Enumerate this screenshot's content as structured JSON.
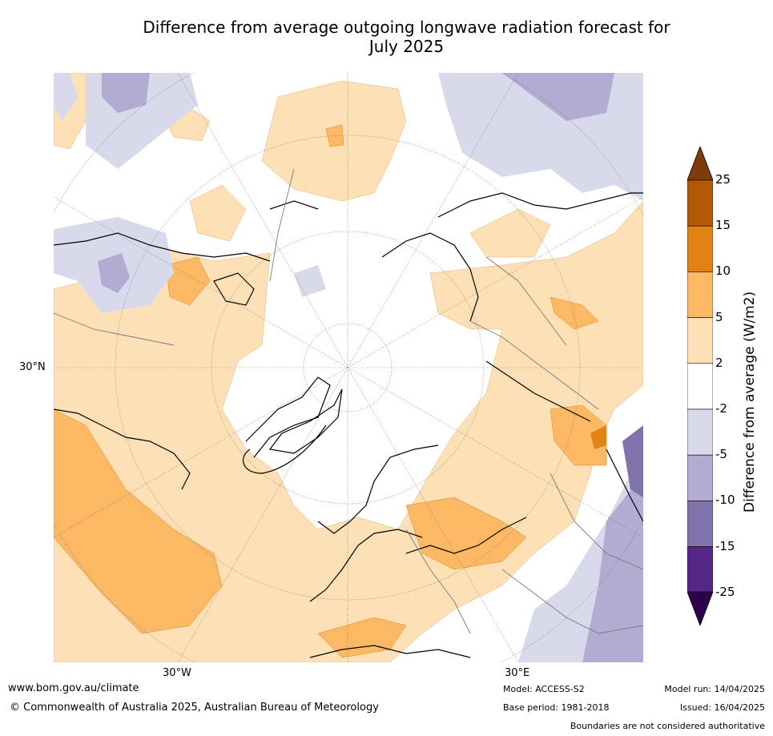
{
  "title_line1": "Difference from average outgoing longwave radiation forecast for",
  "title_line2": "July 2025",
  "map": {
    "projection": "north-polar-stereographic",
    "graticule": "dotted",
    "labels": {
      "lat_30n": "30°N",
      "lon_30w": "30°W",
      "lon_30e": "30°E"
    }
  },
  "colorbar": {
    "label": "Difference from average (W/m2)",
    "ticks": [
      "25",
      "15",
      "10",
      "5",
      "2",
      "-2",
      "-5",
      "-10",
      "-15",
      "-25"
    ],
    "bins": [
      {
        "range": ">25",
        "color": "#7f3b08"
      },
      {
        "range": "15 to 25",
        "color": "#b35806"
      },
      {
        "range": "10 to 15",
        "color": "#e08214"
      },
      {
        "range": "5 to 10",
        "color": "#fdb863"
      },
      {
        "range": "2 to 5",
        "color": "#fee0b6"
      },
      {
        "range": "-2 to 2",
        "color": "#ffffff"
      },
      {
        "range": "-5 to -2",
        "color": "#d8daeb"
      },
      {
        "range": "-10 to -5",
        "color": "#b2abd2"
      },
      {
        "range": "-15 to -10",
        "color": "#8073ac"
      },
      {
        "range": "-25 to -15",
        "color": "#542788"
      },
      {
        "range": "<-25",
        "color": "#2d004b"
      }
    ]
  },
  "footer": {
    "website": "www.bom.gov.au/climate",
    "copyright": "© Commonwealth of Australia 2025, Australian Bureau of Meteorology",
    "model": "Model: ACCESS-S2",
    "base_period": "Base period: 1981-2018",
    "model_run": "Model run: 14/04/2025",
    "issued": "Issued: 16/04/2025",
    "disclaimer": "Boundaries are not considered authoritative"
  }
}
